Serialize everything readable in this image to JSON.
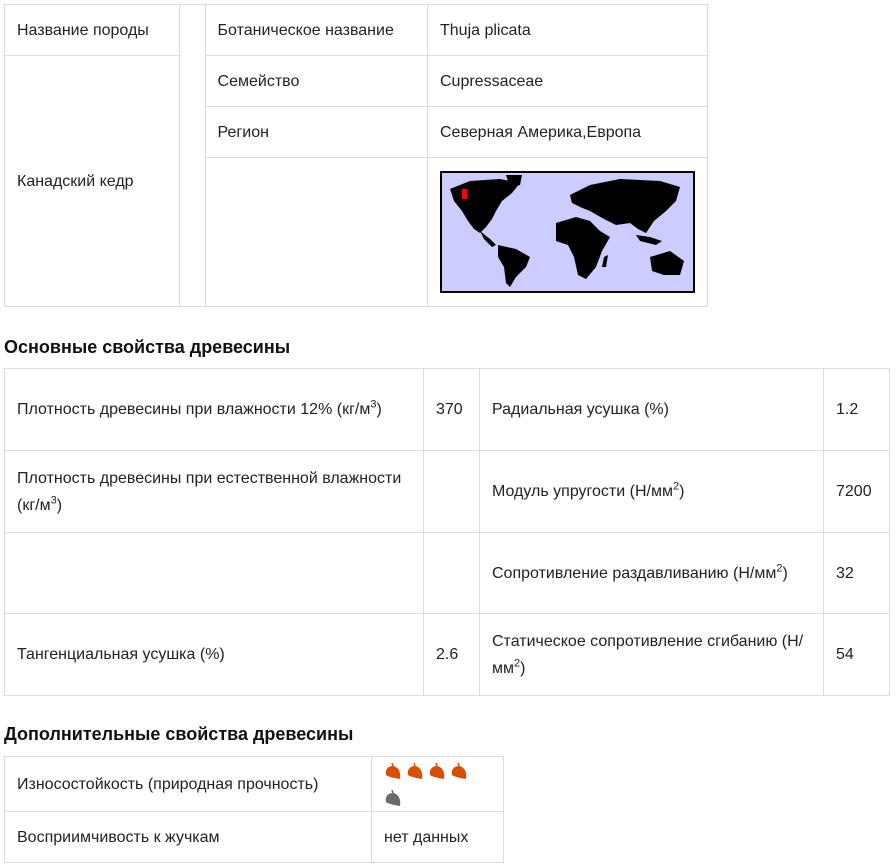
{
  "species": {
    "name_label": "Название породы",
    "name_value": "Канадский кедр",
    "botanical_label": "Ботаническое название",
    "botanical_value": "Thuja plicata",
    "family_label": "Семейство",
    "family_value": "Cupressaceae",
    "region_label": "Регион",
    "region_value": "Северная Америка,Европа",
    "map": {
      "ocean_color": "#ccccff",
      "land_color": "#000000",
      "highlight_color": "#ff0000"
    }
  },
  "basic": {
    "heading": "Основные свойства древесины",
    "density12_label": "Плотность древесины при влажности 12% (кг/м",
    "density12_sup": "3",
    "density12_tail": ")",
    "density12_value": "370",
    "density_nat_label": "Плотность древесины при естественной влажности (кг/м",
    "density_nat_sup": "3",
    "density_nat_tail": ")",
    "tangential_label": "Тангенциальная усушка (%)",
    "tangential_value": "2.6",
    "radial_label": "Радиальная усушка (%)",
    "radial_value": "1.2",
    "elasticity_label": "Модуль упругости (Н/мм",
    "elasticity_sup": "2",
    "elasticity_tail": ")",
    "elasticity_value": "7200",
    "crush_label": "Сопротивление раздавливанию (Н/мм",
    "crush_sup": "2",
    "crush_tail": ")",
    "crush_value": "32",
    "bending_label": "Статическое сопротивление сгибанию (Н/мм",
    "bending_sup": "2",
    "bending_tail": ")",
    "bending_value": "54"
  },
  "extra": {
    "heading": "Дополнительные свойства древесины",
    "durability_label": "Износостойкость (природная прочность)",
    "durability_rating": 4,
    "durability_max": 5,
    "leaf_color_on": "#d94f00",
    "leaf_color_off": "#6b6b6b",
    "beetle_label": "Восприимчивость к жучкам",
    "beetle_value": "нет данных"
  }
}
